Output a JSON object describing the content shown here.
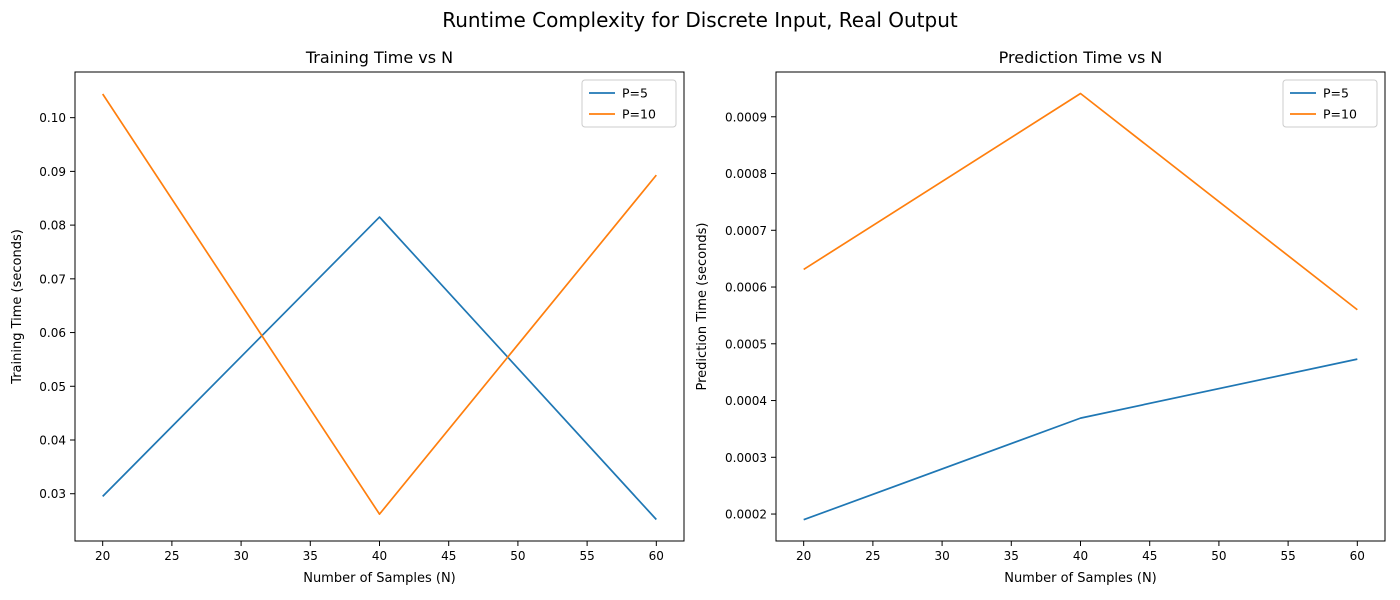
{
  "figure_title": "Runtime Complexity for Discrete Input, Real Output",
  "chart_data": [
    {
      "type": "line",
      "title": "Training Time vs N",
      "xlabel": "Number of Samples (N)",
      "ylabel": "Training Time (seconds)",
      "x": [
        20,
        40,
        60
      ],
      "xlim": [
        18,
        62
      ],
      "ylim": [
        0.0212,
        0.1085
      ],
      "xticks": [
        20,
        25,
        30,
        35,
        40,
        45,
        50,
        55,
        60
      ],
      "yticks": [
        0.03,
        0.04,
        0.05,
        0.06,
        0.07,
        0.08,
        0.09,
        0.1
      ],
      "ytick_decimals": 2,
      "grid": false,
      "legend_position": "top-right",
      "series": [
        {
          "name": "P=5",
          "color": "#1f77b4",
          "values": [
            0.0295,
            0.0815,
            0.0252
          ]
        },
        {
          "name": "P=10",
          "color": "#ff7f0e",
          "values": [
            0.1044,
            0.0262,
            0.0893
          ]
        }
      ]
    },
    {
      "type": "line",
      "title": "Prediction Time vs N",
      "xlabel": "Number of Samples (N)",
      "ylabel": "Prediction Time (seconds)",
      "x": [
        20,
        40,
        60
      ],
      "xlim": [
        18,
        62
      ],
      "ylim": [
        0.0001525,
        0.0009789
      ],
      "xticks": [
        20,
        25,
        30,
        35,
        40,
        45,
        50,
        55,
        60
      ],
      "yticks": [
        0.0002,
        0.0003,
        0.0004,
        0.0005,
        0.0006,
        0.0007,
        0.0008,
        0.0009
      ],
      "ytick_decimals": 4,
      "grid": false,
      "legend_position": "top-right",
      "series": [
        {
          "name": "P=5",
          "color": "#1f77b4",
          "values": [
            0.00019,
            0.000369,
            0.000473
          ]
        },
        {
          "name": "P=10",
          "color": "#ff7f0e",
          "values": [
            0.000631,
            0.000941,
            0.00056
          ]
        }
      ]
    }
  ]
}
